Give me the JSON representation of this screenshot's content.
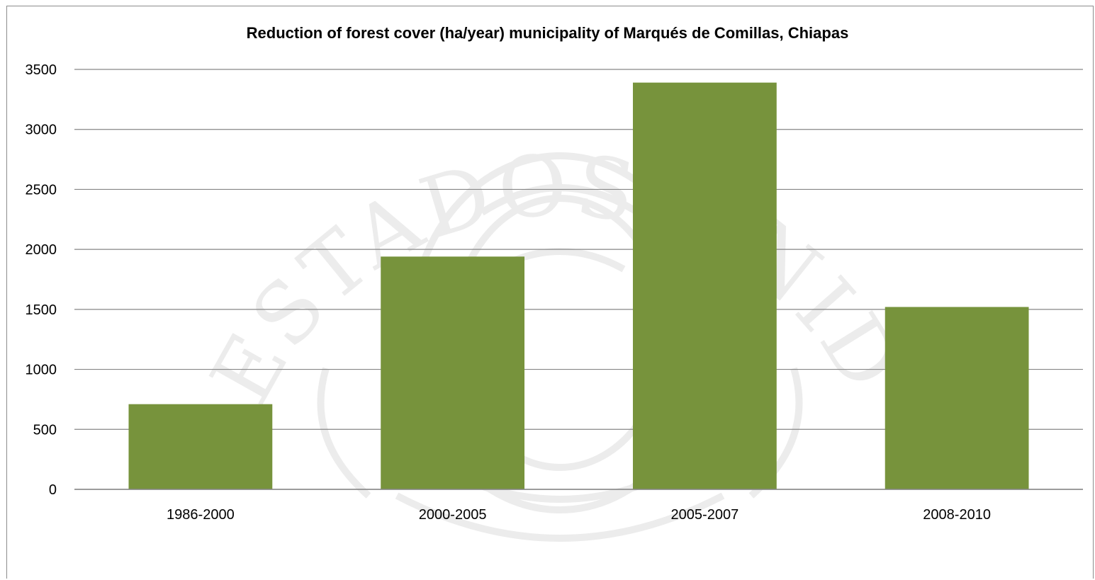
{
  "chart_data": {
    "type": "bar",
    "title": "Reduction of forest cover (ha/year) municipality of Marqués de Comillas, Chiapas",
    "xlabel": "",
    "ylabel": "",
    "categories": [
      "1986-2000",
      "2000-2005",
      "2005-2007",
      "2008-2010"
    ],
    "values": [
      710,
      1940,
      3390,
      1520
    ],
    "ylim": [
      0,
      3500
    ],
    "yticks": [
      "0",
      "500",
      "1000",
      "1500",
      "2000",
      "2500",
      "3000",
      "3500"
    ],
    "grid": true,
    "legend": "none",
    "colors": {
      "bar": "#77933C",
      "grid": "#868686",
      "text": "#000000",
      "watermark": "#e9e9e9"
    }
  }
}
